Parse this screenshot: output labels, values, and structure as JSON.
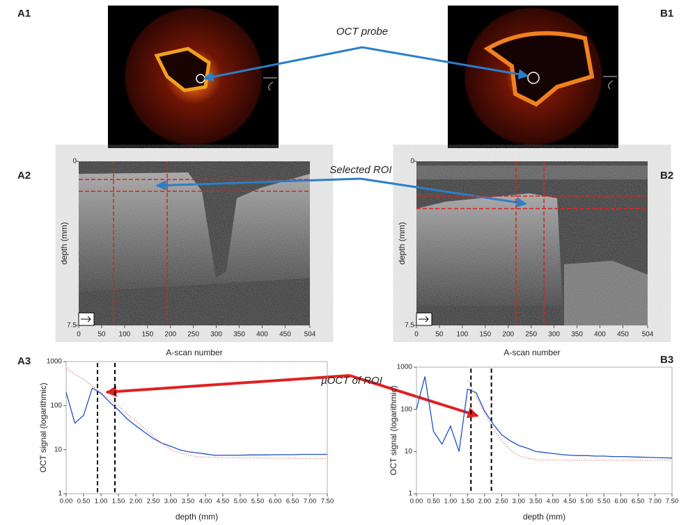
{
  "labels": {
    "a1": "A1",
    "b1": "B1",
    "a2": "A2",
    "b2": "B2",
    "a3": "A3",
    "b3": "B3"
  },
  "annotations": {
    "probe": "OCT probe",
    "roi": "Selected ROI",
    "muoct": "µOCT of ROI"
  },
  "scans": [
    {
      "ylabel": "depth (mm)",
      "xlabel": "A-scan number",
      "ylim": [
        0,
        7.5
      ],
      "yticks": [
        0,
        7.5
      ],
      "xlim": [
        0,
        504
      ],
      "xticks": [
        0,
        50,
        100,
        150,
        200,
        250,
        300,
        350,
        400,
        450,
        504
      ],
      "roi_x": [
        76,
        193
      ],
      "roi_y": [
        0.83,
        1.37
      ]
    },
    {
      "ylabel": "depth (mm)",
      "xlabel": "A-scan number",
      "ylim": [
        0,
        7.5
      ],
      "yticks": [
        0,
        7.5
      ],
      "xlim": [
        0,
        504
      ],
      "xticks": [
        0,
        50,
        100,
        150,
        200,
        250,
        300,
        350,
        400,
        450,
        504
      ],
      "roi_x": [
        217,
        278
      ],
      "roi_y": [
        1.59,
        2.16
      ]
    }
  ],
  "chart_data": [
    {
      "type": "line",
      "log_y": true,
      "ylabel": "OCT signal (logarithmic)",
      "xlabel": "depth (mm)",
      "xlim": [
        0,
        7.5
      ],
      "ylim": [
        1,
        1000
      ],
      "yticks": [
        1,
        10,
        100,
        1000
      ],
      "xticks": [
        {
          "value": 0,
          "label": "0.00"
        },
        {
          "value": 0.5,
          "label": "0.50"
        },
        {
          "value": 1,
          "label": "1.00"
        },
        {
          "value": 1.5,
          "label": "1.50"
        },
        {
          "value": 2,
          "label": "2.00"
        },
        {
          "value": 2.5,
          "label": "2.50"
        },
        {
          "value": 3,
          "label": "3.00"
        },
        {
          "value": 3.5,
          "label": "3.50"
        },
        {
          "value": 4,
          "label": "4.00"
        },
        {
          "value": 4.5,
          "label": "4.50"
        },
        {
          "value": 5,
          "label": "5.00"
        },
        {
          "value": 5.5,
          "label": "5.50"
        },
        {
          "value": 6,
          "label": "6.00"
        },
        {
          "value": 6.5,
          "label": "6.50"
        },
        {
          "value": 7,
          "label": "7.00"
        },
        {
          "value": 7.5,
          "label": "7.50"
        }
      ],
      "markers": [
        0.9,
        1.4
      ],
      "x": [
        0,
        0.25,
        0.5,
        0.75,
        1,
        1.25,
        1.5,
        1.75,
        2,
        2.25,
        2.5,
        2.75,
        3,
        3.25,
        3.5,
        3.75,
        4,
        4.25,
        4.5,
        4.75,
        5,
        5.25,
        5.5,
        5.75,
        6,
        6.25,
        6.5,
        6.75,
        7,
        7.25,
        7.5
      ],
      "series": [
        {
          "color": "#1f4fbf",
          "values": [
            200,
            40,
            60,
            250,
            190,
            120,
            80,
            50,
            35,
            25,
            18,
            14,
            12,
            10,
            9,
            8.5,
            8,
            7.5,
            7.5,
            7.5,
            7.5,
            7.6,
            7.6,
            7.6,
            7.7,
            7.7,
            7.7,
            7.8,
            7.8,
            7.8,
            7.8
          ]
        },
        {
          "color": "#e07070",
          "dotted": true,
          "values": [
            700,
            520,
            400,
            280,
            200,
            140,
            100,
            65,
            45,
            30,
            20,
            14,
            10,
            8.5,
            7.5,
            7,
            6.8,
            6.7,
            6.6,
            6.6,
            6.5,
            6.5,
            6.5,
            6.4,
            6.4,
            6.4,
            6.4,
            6.3,
            6.3,
            6.3,
            6.3
          ]
        }
      ]
    },
    {
      "type": "line",
      "log_y": true,
      "ylabel": "OCT signal (logarithmic)",
      "xlabel": "depth (mm)",
      "xlim": [
        0,
        7.5
      ],
      "ylim": [
        1,
        1000
      ],
      "yticks": [
        1,
        10,
        100,
        1000
      ],
      "xticks": [
        {
          "value": 0,
          "label": "0.00"
        },
        {
          "value": 0.5,
          "label": "0.50"
        },
        {
          "value": 1,
          "label": "1.00"
        },
        {
          "value": 1.5,
          "label": "1.50"
        },
        {
          "value": 2,
          "label": "2.00"
        },
        {
          "value": 2.5,
          "label": "2.50"
        },
        {
          "value": 3,
          "label": "3.00"
        },
        {
          "value": 3.5,
          "label": "3.50"
        },
        {
          "value": 4,
          "label": "4.00"
        },
        {
          "value": 4.5,
          "label": "4.50"
        },
        {
          "value": 5,
          "label": "5.00"
        },
        {
          "value": 5.5,
          "label": "5.50"
        },
        {
          "value": 6,
          "label": "6.00"
        },
        {
          "value": 6.5,
          "label": "6.50"
        },
        {
          "value": 7,
          "label": "7.00"
        },
        {
          "value": 7.5,
          "label": "7.50"
        }
      ],
      "markers": [
        1.6,
        2.2
      ],
      "x": [
        0,
        0.25,
        0.5,
        0.75,
        1,
        1.25,
        1.5,
        1.75,
        2,
        2.25,
        2.5,
        2.75,
        3,
        3.25,
        3.5,
        3.75,
        4,
        4.25,
        4.5,
        4.75,
        5,
        5.25,
        5.5,
        5.75,
        6,
        6.25,
        6.5,
        6.75,
        7,
        7.25,
        7.5
      ],
      "series": [
        {
          "color": "#1f4fbf",
          "values": [
            100,
            600,
            30,
            15,
            40,
            10,
            300,
            250,
            90,
            45,
            25,
            18,
            14,
            12,
            10,
            9.5,
            9,
            8.5,
            8.2,
            8,
            8,
            7.8,
            7.8,
            7.6,
            7.6,
            7.5,
            7.4,
            7.3,
            7.2,
            7.1,
            7
          ]
        },
        {
          "color": "#e07070",
          "dotted": true,
          "values": [
            null,
            null,
            null,
            null,
            null,
            null,
            500,
            200,
            80,
            35,
            18,
            11,
            8,
            7,
            6.5,
            6.3,
            6.2,
            6.2,
            6.2,
            6.2,
            6.2,
            6.2,
            6.2,
            6.2,
            6.2,
            6.2,
            6.2,
            6.2,
            6.2,
            6.2,
            6.2
          ]
        }
      ]
    }
  ]
}
